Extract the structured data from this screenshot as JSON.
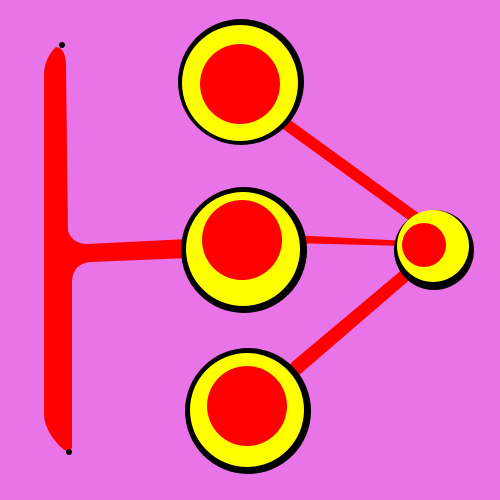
{
  "colors": {
    "background": "#E874E8",
    "connection": "#FF0000",
    "node_fill": "#FF0000",
    "node_ring": "#FFFF00",
    "node_outline": "#000000",
    "bus_endpoint": "#000000"
  },
  "diagram": {
    "style": "trace-style node graph",
    "bus": {
      "orientation": "vertical",
      "branch_count": 1
    },
    "nodes": [
      {
        "id": "top-node"
      },
      {
        "id": "middle-node"
      },
      {
        "id": "bottom-node"
      },
      {
        "id": "hub-node"
      }
    ],
    "edges": [
      {
        "from": "bus",
        "to": "middle-node"
      },
      {
        "from": "top-node",
        "to": "hub-node"
      },
      {
        "from": "middle-node",
        "to": "hub-node"
      },
      {
        "from": "bottom-node",
        "to": "hub-node"
      }
    ]
  }
}
